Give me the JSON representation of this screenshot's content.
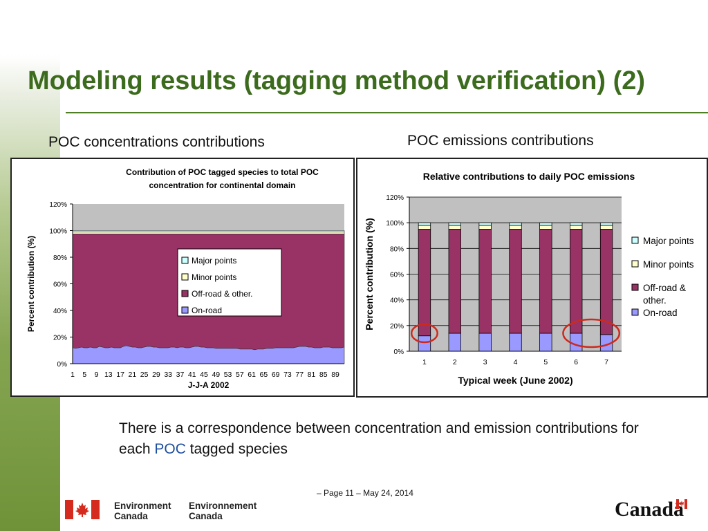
{
  "slide": {
    "title": "Modeling results (tagging method verification) (2)",
    "left_subtitle": "POC concentrations contributions",
    "right_subtitle": "POC emissions contributions",
    "conclusion_pre": "There is a correspondence between concentration and emission contributions for each ",
    "conclusion_highlight": "POC",
    "conclusion_post": " tagged species",
    "footer": "– Page 11 – May 24, 2014",
    "logo_en": [
      "Environment",
      "Canada"
    ],
    "logo_fr": [
      "Environnement",
      "Canada"
    ],
    "wordmark": "Canadä",
    "colors": {
      "title": "#3c6b1e",
      "highlight": "#1f4fa0",
      "rule": "#4f7f24",
      "flag_red": "#d52b1e"
    }
  },
  "chart_data": [
    {
      "type": "area",
      "stacked": true,
      "title_lines": [
        "Contribution of POC tagged species to total POC",
        "concentration for continental domain"
      ],
      "xlabel": "J-J-A 2002",
      "ylabel": "Percent contribution  (%)",
      "ylim": [
        0,
        120
      ],
      "yticks": [
        "0%",
        "20%",
        "40%",
        "60%",
        "80%",
        "100%",
        "120%"
      ],
      "xtick_labels": [
        "1",
        "5",
        "9",
        "13",
        "17",
        "21",
        "25",
        "29",
        "33",
        "37",
        "41",
        "45",
        "49",
        "53",
        "57",
        "61",
        "65",
        "69",
        "73",
        "77",
        "81",
        "85",
        "89"
      ],
      "x_count": 92,
      "legend": {
        "placement": "center-right",
        "entries": [
          "Major points",
          "Minor points",
          "Off-road & other.",
          "On-road"
        ]
      },
      "plot_background": "#c0c0c0",
      "series": [
        {
          "name": "On-road",
          "color": "#9999ff",
          "values": [
            12,
            11.5,
            12,
            12.5,
            12,
            12,
            12.5,
            12,
            12,
            13,
            12.5,
            12,
            12,
            12.5,
            12,
            12,
            12,
            13,
            13.5,
            13,
            12.5,
            12.5,
            12,
            12,
            12.5,
            13,
            13,
            12.5,
            12.5,
            12,
            12,
            12,
            12,
            12.5,
            12.5,
            12,
            12.5,
            12.5,
            12,
            12,
            12.5,
            13,
            13,
            12.5,
            12.5,
            12,
            12,
            12,
            11.5,
            11.5,
            11.5,
            11.5,
            11.5,
            11.5,
            11.5,
            11.5,
            11,
            11,
            11,
            11,
            11,
            10.5,
            11,
            11,
            11,
            11.5,
            11.5,
            11.5,
            12,
            12,
            12,
            12,
            12,
            12,
            12,
            12.5,
            13,
            13,
            13,
            12.5,
            12.5,
            12,
            12,
            12,
            12.5,
            12.5,
            12.5,
            12,
            12,
            12,
            12,
            12.5
          ]
        },
        {
          "name": "Off-road & other.",
          "color": "#993366",
          "values": [
            85.5,
            86,
            85.5,
            85,
            85.5,
            85.5,
            85,
            85.5,
            85.5,
            84.5,
            85,
            85.5,
            85.5,
            85,
            85.5,
            85.5,
            85.5,
            84.5,
            84,
            84.5,
            85,
            85,
            85.5,
            85.5,
            85,
            84.5,
            84.5,
            85,
            85,
            85.5,
            85.5,
            85.5,
            85.5,
            85,
            85,
            85.5,
            85,
            85,
            85.5,
            85.5,
            85,
            84.5,
            84.5,
            85,
            85,
            85.5,
            85.5,
            85.5,
            86,
            86,
            86,
            86,
            86,
            86,
            86,
            86,
            86.5,
            86.5,
            86.5,
            86.5,
            86.5,
            87,
            86.5,
            86.5,
            86.5,
            86,
            86,
            86,
            85.5,
            85.5,
            85.5,
            85.5,
            85.5,
            85.5,
            85.5,
            85,
            84.5,
            84.5,
            84.5,
            85,
            85,
            85.5,
            85.5,
            85.5,
            85,
            85,
            85,
            85.5,
            85.5,
            85.5,
            85.5,
            85
          ]
        },
        {
          "name": "Minor points",
          "color": "#ffffcc",
          "values": [
            1.5,
            1.5,
            1.5,
            1.5,
            1.5,
            1.5,
            1.5,
            1.5,
            1.5,
            1.5,
            1.5,
            1.5,
            1.5,
            1.5,
            1.5,
            1.5,
            1.5,
            1.5,
            1.5,
            1.5,
            1.5,
            1.5,
            1.5,
            1.5,
            1.5,
            1.5,
            1.5,
            1.5,
            1.5,
            1.5,
            1.5,
            1.5,
            1.5,
            1.5,
            1.5,
            1.5,
            1.5,
            1.5,
            1.5,
            1.5,
            1.5,
            1.5,
            1.5,
            1.5,
            1.5,
            1.5,
            1.5,
            1.5,
            1.5,
            1.5,
            1.5,
            1.5,
            1.5,
            1.5,
            1.5,
            1.5,
            1.5,
            1.5,
            1.5,
            1.5,
            1.5,
            1.5,
            1.5,
            1.5,
            1.5,
            1.5,
            1.5,
            1.5,
            1.5,
            1.5,
            1.5,
            1.5,
            1.5,
            1.5,
            1.5,
            1.5,
            1.5,
            1.5,
            1.5,
            1.5,
            1.5,
            1.5,
            1.5,
            1.5,
            1.5,
            1.5,
            1.5,
            1.5,
            1.5,
            1.5,
            1.5,
            1.5
          ]
        },
        {
          "name": "Major points",
          "color": "#ccffff",
          "values": [
            1,
            1,
            1,
            1,
            1,
            1,
            1,
            1,
            1,
            1,
            1,
            1,
            1,
            1,
            1,
            1,
            1,
            1,
            1,
            1,
            1,
            1,
            1,
            1,
            1,
            1,
            1,
            1,
            1,
            1,
            1,
            1,
            1,
            1,
            1,
            1,
            1,
            1,
            1,
            1,
            1,
            1,
            1,
            1,
            1,
            1,
            1,
            1,
            1,
            1,
            1,
            1,
            1,
            1,
            1,
            1,
            1,
            1,
            1,
            1,
            1,
            1,
            1,
            1,
            1,
            1,
            1,
            1,
            1,
            1,
            1,
            1,
            1,
            1,
            1,
            1,
            1,
            1,
            1,
            1,
            1,
            1,
            1,
            1,
            1,
            1,
            1,
            1,
            1,
            1,
            1,
            1
          ]
        }
      ]
    },
    {
      "type": "bar",
      "stacked": true,
      "title": "Relative contributions to daily POC emissions",
      "xlabel": "Typical week (June 2002)",
      "ylabel": "Percent contribution (%)",
      "ylim": [
        0,
        120
      ],
      "yticks": [
        "0%",
        "20%",
        "40%",
        "60%",
        "80%",
        "100%",
        "120%"
      ],
      "categories": [
        "1",
        "2",
        "3",
        "4",
        "5",
        "6",
        "7"
      ],
      "legend": {
        "placement": "right",
        "entries": [
          {
            "name": "Major points",
            "lines": [
              "Major points"
            ]
          },
          {
            "name": "Minor points",
            "lines": [
              "Minor points"
            ]
          },
          {
            "name": "Off-road & other.",
            "lines": [
              "Off-road &",
              "other."
            ]
          },
          {
            "name": "On-road",
            "lines": [
              "On-road"
            ]
          }
        ]
      },
      "plot_background": "#c0c0c0",
      "series": [
        {
          "name": "On-road",
          "color": "#9999ff",
          "values": [
            12,
            14,
            14,
            14,
            14,
            14,
            13
          ]
        },
        {
          "name": "Off-road & other.",
          "color": "#993366",
          "values": [
            83,
            81,
            81,
            81,
            81,
            81,
            82
          ]
        },
        {
          "name": "Minor points",
          "color": "#ffffcc",
          "values": [
            3,
            3,
            3,
            3,
            3,
            3,
            3
          ]
        },
        {
          "name": "Major points",
          "color": "#ccffff",
          "values": [
            2,
            2,
            2,
            2,
            2,
            2,
            2
          ]
        }
      ],
      "annotations": [
        {
          "type": "ellipse",
          "color": "#cc2a1e",
          "around_categories": [
            "1"
          ]
        },
        {
          "type": "ellipse",
          "color": "#cc2a1e",
          "around_categories": [
            "6",
            "7"
          ]
        }
      ]
    }
  ]
}
